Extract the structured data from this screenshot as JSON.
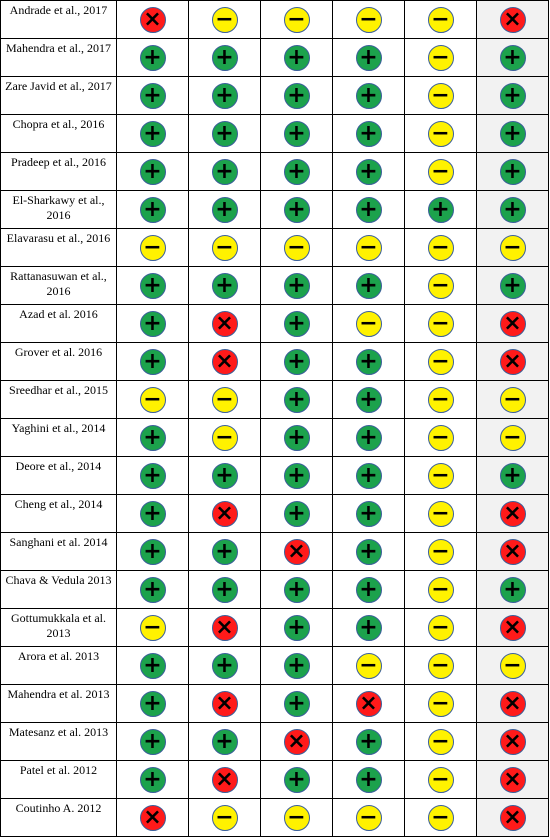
{
  "symbol_colors": {
    "+": "#1ca24c",
    "−": "#fff200",
    "×": "#ff1a1a"
  },
  "rows": [
    {
      "study": "Andrade et al., 2017",
      "ratings": [
        "×",
        "−",
        "−",
        "−",
        "−",
        "×"
      ]
    },
    {
      "study": "Mahendra et al., 2017",
      "ratings": [
        "+",
        "+",
        "+",
        "+",
        "−",
        "+"
      ]
    },
    {
      "study": "Zare Javid et al., 2017",
      "ratings": [
        "+",
        "+",
        "+",
        "+",
        "−",
        "+"
      ]
    },
    {
      "study": "Chopra et al., 2016",
      "ratings": [
        "+",
        "+",
        "+",
        "+",
        "−",
        "+"
      ]
    },
    {
      "study": "Pradeep et al., 2016",
      "ratings": [
        "+",
        "+",
        "+",
        "+",
        "−",
        "+"
      ]
    },
    {
      "study": "El-Sharkawy et al., 2016",
      "ratings": [
        "+",
        "+",
        "+",
        "+",
        "+",
        "+"
      ]
    },
    {
      "study": "Elavarasu et al., 2016",
      "ratings": [
        "−",
        "−",
        "−",
        "−",
        "−",
        "−"
      ]
    },
    {
      "study": "Rattanasuwan et al., 2016",
      "ratings": [
        "+",
        "+",
        "+",
        "+",
        "−",
        "+"
      ]
    },
    {
      "study": "Azad et al. 2016",
      "ratings": [
        "+",
        "×",
        "+",
        "−",
        "−",
        "×"
      ]
    },
    {
      "study": "Grover et al. 2016",
      "ratings": [
        "+",
        "×",
        "+",
        "+",
        "−",
        "×"
      ]
    },
    {
      "study": "Sreedhar et al., 2015",
      "ratings": [
        "−",
        "−",
        "+",
        "+",
        "−",
        "−"
      ]
    },
    {
      "study": "Yaghini et al., 2014",
      "ratings": [
        "+",
        "−",
        "+",
        "+",
        "−",
        "−"
      ]
    },
    {
      "study": "Deore et al., 2014",
      "ratings": [
        "+",
        "+",
        "+",
        "+",
        "−",
        "+"
      ]
    },
    {
      "study": "Cheng et al., 2014",
      "ratings": [
        "+",
        "×",
        "+",
        "+",
        "−",
        "×"
      ]
    },
    {
      "study": "Sanghani et al. 2014",
      "ratings": [
        "+",
        "+",
        "×",
        "+",
        "−",
        "×"
      ]
    },
    {
      "study": "Chava & Vedula 2013",
      "ratings": [
        "+",
        "+",
        "+",
        "+",
        "−",
        "+"
      ]
    },
    {
      "study": "Gottumukkala et al. 2013",
      "ratings": [
        "−",
        "×",
        "+",
        "+",
        "−",
        "×"
      ]
    },
    {
      "study": "Arora et al. 2013",
      "ratings": [
        "+",
        "+",
        "+",
        "−",
        "−",
        "−"
      ]
    },
    {
      "study": "Mahendra et al. 2013",
      "ratings": [
        "+",
        "×",
        "+",
        "×",
        "−",
        "×"
      ]
    },
    {
      "study": "Matesanz et al. 2013",
      "ratings": [
        "+",
        "+",
        "×",
        "+",
        "−",
        "×"
      ]
    },
    {
      "study": "Patel et al. 2012",
      "ratings": [
        "+",
        "×",
        "+",
        "+",
        "−",
        "×"
      ]
    },
    {
      "study": "Coutinho A. 2012",
      "ratings": [
        "×",
        "−",
        "−",
        "−",
        "−",
        "×"
      ]
    }
  ]
}
